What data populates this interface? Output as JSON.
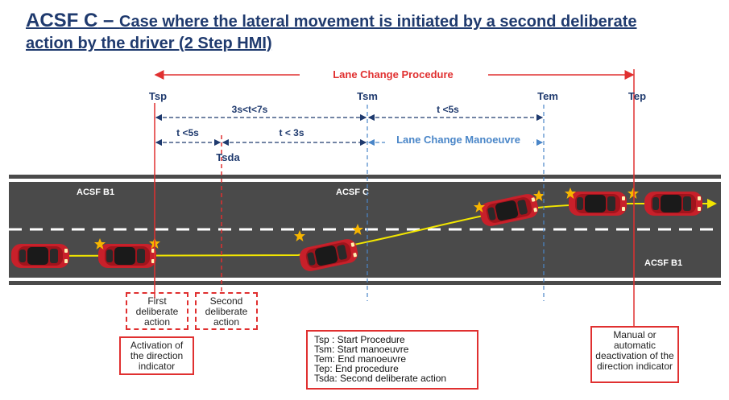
{
  "title": {
    "prefix": "ACSF C",
    "dash": " – ",
    "text": "Case where the lateral movement is initiated by a second deliberate action by the driver (2 Step HMI)"
  },
  "timeline": {
    "procedure_label": "Lane Change Procedure",
    "markers": [
      "Tsp",
      "Tsm",
      "Tem",
      "Tep"
    ],
    "tsda": "Tsda",
    "interval_main": "3s<t<7s",
    "interval_manoeuvre": "t <5s",
    "interval_first": "t <5s",
    "interval_second": "t < 3s",
    "manoeuvre_label": "Lane Change Manoeuvre"
  },
  "road": {
    "label_top_left": "ACSF B1",
    "label_top_center": "ACSF C",
    "label_bottom_right": "ACSF B1"
  },
  "boxes": {
    "first_action": "First deliberate action",
    "second_action": "Second deliberate action",
    "activation": "Activation of the direction indicator",
    "deactivation": "Manual or automatic deactivation of the direction indicator"
  },
  "legend": [
    "Tsp : Start Procedure",
    "Tsm: Start manoeuvre",
    "Tem: End manoeuvre",
    "Tep:  End procedure",
    "Tsda: Second deliberate action"
  ],
  "colors": {
    "title": "#1f3a6e",
    "red": "#e03030",
    "blue_dash": "#4a86c8",
    "road": "#4a4a4a",
    "car": "#c8202a",
    "path": "#f2e600",
    "star": "#f7b500"
  }
}
